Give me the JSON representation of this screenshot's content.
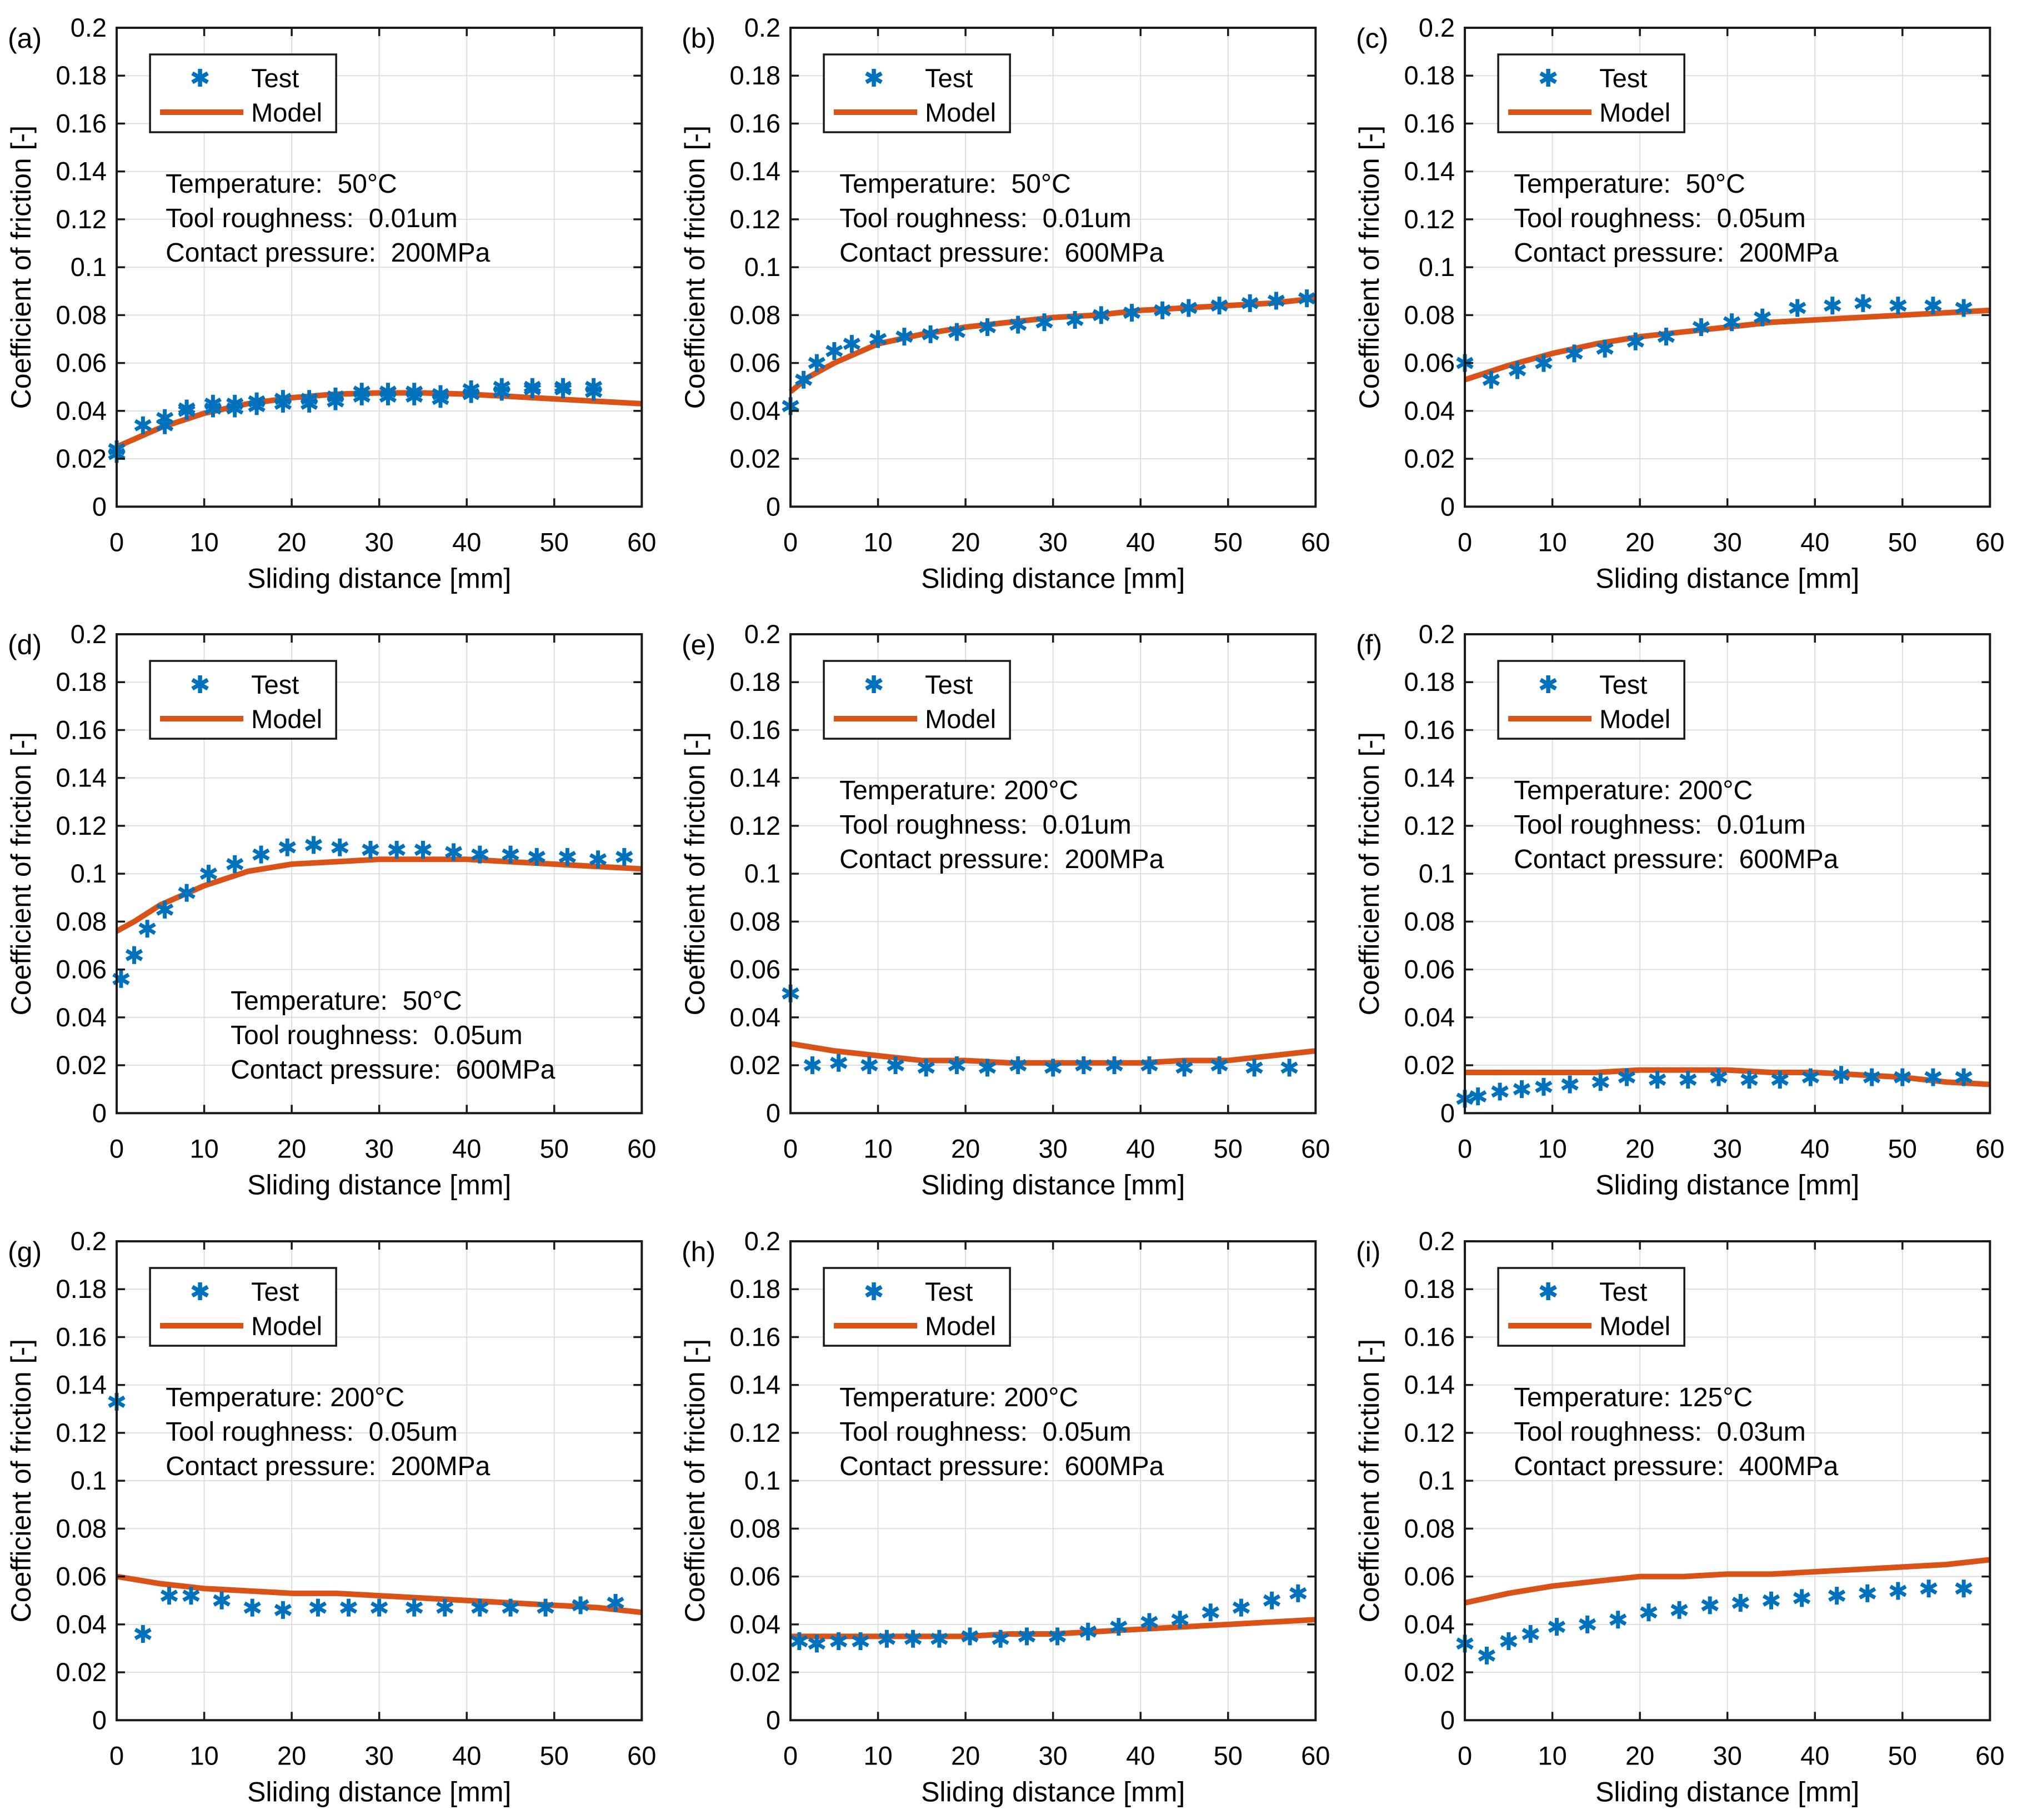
{
  "figure": {
    "xlabel": "Sliding distance [mm]",
    "ylabel": "Coefficient of friction [-]",
    "legend": {
      "test_label": "Test",
      "model_label": "Model"
    },
    "colors": {
      "test": "#0072BD",
      "model": "#D95319",
      "grid": "#DEDEDE",
      "axis": "#1a1a1a",
      "text": "#000000",
      "background": "#ffffff"
    },
    "axes": {
      "xlim": [
        0,
        60
      ],
      "ylim": [
        0,
        0.2
      ],
      "xticks": [
        0,
        10,
        20,
        30,
        40,
        50,
        60
      ],
      "xtick_labels": [
        "0",
        "10",
        "20",
        "30",
        "40",
        "50",
        "60"
      ],
      "yticks": [
        0,
        0.02,
        0.04,
        0.06,
        0.08,
        0.1,
        0.12,
        0.14,
        0.16,
        0.18,
        0.2
      ],
      "ytick_labels": [
        "0",
        "0.02",
        "0.04",
        "0.06",
        "0.08",
        "0.1",
        "0.12",
        "0.14",
        "0.16",
        "0.18",
        "0.2"
      ],
      "grid": true,
      "legend_position": "upper-left-inside"
    }
  },
  "chart_data": [
    {
      "panel": "(a)",
      "type": "scatter+line",
      "annotation": {
        "position": "upper",
        "lines": [
          "Temperature:  50°C",
          "Tool roughness:  0.01um",
          "Contact pressure:  200MPa"
        ]
      },
      "series": [
        {
          "name": "Test",
          "type": "scatter",
          "x": [
            0,
            0,
            3,
            5.5,
            5.5,
            8,
            8,
            11,
            11,
            13.5,
            13.5,
            16,
            16,
            19,
            19,
            22,
            22,
            25,
            25,
            28,
            28,
            31,
            31,
            34,
            34,
            37,
            37,
            40.5,
            40.5,
            44,
            44,
            47.5,
            47.5,
            51,
            51,
            54.5,
            54.5
          ],
          "y": [
            0.022,
            0.024,
            0.034,
            0.034,
            0.037,
            0.04,
            0.041,
            0.041,
            0.043,
            0.041,
            0.043,
            0.042,
            0.044,
            0.043,
            0.045,
            0.043,
            0.045,
            0.044,
            0.046,
            0.046,
            0.048,
            0.046,
            0.048,
            0.046,
            0.048,
            0.045,
            0.047,
            0.047,
            0.049,
            0.048,
            0.05,
            0.049,
            0.05,
            0.049,
            0.05,
            0.048,
            0.05
          ]
        },
        {
          "name": "Model",
          "type": "line",
          "x": [
            0,
            5,
            10,
            15,
            20,
            25,
            30,
            35,
            40,
            45,
            50,
            55,
            60
          ],
          "y": [
            0.025,
            0.033,
            0.039,
            0.043,
            0.0455,
            0.047,
            0.0475,
            0.0475,
            0.047,
            0.046,
            0.045,
            0.044,
            0.043
          ]
        }
      ]
    },
    {
      "panel": "(b)",
      "type": "scatter+line",
      "annotation": {
        "position": "upper",
        "lines": [
          "Temperature:  50°C",
          "Tool roughness:  0.01um",
          "Contact pressure:  600MPa"
        ]
      },
      "series": [
        {
          "name": "Test",
          "type": "scatter",
          "x": [
            0,
            1.5,
            3,
            5,
            7,
            10,
            13,
            16,
            19,
            22.5,
            26,
            29,
            32.5,
            35.5,
            39,
            42.5,
            45.5,
            49,
            52.5,
            55.5,
            59
          ],
          "y": [
            0.042,
            0.053,
            0.06,
            0.065,
            0.068,
            0.07,
            0.071,
            0.072,
            0.073,
            0.075,
            0.076,
            0.077,
            0.078,
            0.08,
            0.081,
            0.082,
            0.083,
            0.084,
            0.085,
            0.086,
            0.087
          ]
        },
        {
          "name": "Model",
          "type": "line",
          "x": [
            0,
            2,
            5,
            10,
            15,
            20,
            25,
            30,
            35,
            40,
            45,
            50,
            55,
            60
          ],
          "y": [
            0.048,
            0.054,
            0.06,
            0.068,
            0.072,
            0.075,
            0.077,
            0.079,
            0.08,
            0.082,
            0.083,
            0.084,
            0.085,
            0.087
          ]
        }
      ]
    },
    {
      "panel": "(c)",
      "type": "scatter+line",
      "annotation": {
        "position": "upper",
        "lines": [
          "Temperature:  50°C",
          "Tool roughness:  0.05um",
          "Contact pressure:  200MPa"
        ]
      },
      "series": [
        {
          "name": "Test",
          "type": "scatter",
          "x": [
            0,
            3,
            6,
            9,
            12.5,
            16,
            19.5,
            23,
            27,
            30.5,
            34,
            38,
            42,
            45.5,
            49.5,
            53.5,
            57
          ],
          "y": [
            0.06,
            0.053,
            0.057,
            0.06,
            0.064,
            0.066,
            0.069,
            0.071,
            0.075,
            0.077,
            0.079,
            0.083,
            0.084,
            0.085,
            0.084,
            0.084,
            0.083
          ]
        },
        {
          "name": "Model",
          "type": "line",
          "x": [
            0,
            5,
            10,
            15,
            20,
            25,
            30,
            35,
            40,
            45,
            50,
            55,
            60
          ],
          "y": [
            0.053,
            0.059,
            0.064,
            0.068,
            0.071,
            0.073,
            0.075,
            0.077,
            0.078,
            0.079,
            0.08,
            0.081,
            0.082
          ]
        }
      ]
    },
    {
      "panel": "(d)",
      "type": "scatter+line",
      "annotation": {
        "position": "lower",
        "lines": [
          "Temperature:  50°C",
          "Tool roughness:  0.05um",
          "Contact pressure:  600MPa"
        ]
      },
      "series": [
        {
          "name": "Test",
          "type": "scatter",
          "x": [
            0.5,
            2,
            3.5,
            5.5,
            8,
            10.5,
            13.5,
            16.5,
            19.5,
            22.5,
            25.5,
            29,
            32,
            35,
            38.5,
            41.5,
            45,
            48,
            51.5,
            55,
            58
          ],
          "y": [
            0.056,
            0.066,
            0.077,
            0.085,
            0.092,
            0.1,
            0.104,
            0.108,
            0.111,
            0.112,
            0.111,
            0.11,
            0.11,
            0.11,
            0.109,
            0.108,
            0.108,
            0.107,
            0.107,
            0.106,
            0.107
          ]
        },
        {
          "name": "Model",
          "type": "line",
          "x": [
            0,
            2,
            5,
            10,
            15,
            20,
            25,
            30,
            35,
            40,
            45,
            50,
            55,
            60
          ],
          "y": [
            0.076,
            0.08,
            0.087,
            0.095,
            0.101,
            0.104,
            0.105,
            0.106,
            0.106,
            0.106,
            0.105,
            0.104,
            0.103,
            0.102
          ]
        }
      ]
    },
    {
      "panel": "(e)",
      "type": "scatter+line",
      "annotation": {
        "position": "upper",
        "lines": [
          "Temperature: 200°C",
          "Tool roughness:  0.01um",
          "Contact pressure:  200MPa"
        ]
      },
      "series": [
        {
          "name": "Test",
          "type": "scatter",
          "x": [
            0,
            2.5,
            5.5,
            9,
            12,
            15.5,
            19,
            22.5,
            26,
            30,
            33.5,
            37,
            41,
            45,
            49,
            53,
            57
          ],
          "y": [
            0.05,
            0.02,
            0.021,
            0.02,
            0.02,
            0.019,
            0.02,
            0.019,
            0.02,
            0.019,
            0.02,
            0.02,
            0.02,
            0.019,
            0.02,
            0.019,
            0.019
          ]
        },
        {
          "name": "Model",
          "type": "line",
          "x": [
            0,
            5,
            10,
            15,
            20,
            25,
            30,
            35,
            40,
            45,
            50,
            55,
            60
          ],
          "y": [
            0.029,
            0.026,
            0.024,
            0.022,
            0.022,
            0.021,
            0.021,
            0.021,
            0.021,
            0.022,
            0.022,
            0.024,
            0.026
          ]
        }
      ]
    },
    {
      "panel": "(f)",
      "type": "scatter+line",
      "annotation": {
        "position": "upper",
        "lines": [
          "Temperature: 200°C",
          "Tool roughness:  0.01um",
          "Contact pressure:  600MPa"
        ]
      },
      "series": [
        {
          "name": "Test",
          "type": "scatter",
          "x": [
            0,
            1.5,
            4,
            6.5,
            9,
            12,
            15.5,
            18.5,
            22,
            25.5,
            29,
            32.5,
            36,
            39.5,
            43,
            46.5,
            50,
            53.5,
            57
          ],
          "y": [
            0.006,
            0.007,
            0.009,
            0.01,
            0.011,
            0.012,
            0.013,
            0.015,
            0.014,
            0.014,
            0.015,
            0.014,
            0.014,
            0.015,
            0.016,
            0.015,
            0.015,
            0.015,
            0.015
          ]
        },
        {
          "name": "Model",
          "type": "line",
          "x": [
            0,
            5,
            10,
            15,
            20,
            25,
            30,
            35,
            40,
            45,
            50,
            55,
            60
          ],
          "y": [
            0.017,
            0.017,
            0.017,
            0.017,
            0.018,
            0.018,
            0.018,
            0.017,
            0.017,
            0.016,
            0.015,
            0.013,
            0.012
          ]
        }
      ]
    },
    {
      "panel": "(g)",
      "type": "scatter+line",
      "annotation": {
        "position": "upper",
        "lines": [
          "Temperature: 200°C",
          "Tool roughness:  0.05um",
          "Contact pressure:  200MPa"
        ]
      },
      "series": [
        {
          "name": "Test",
          "type": "scatter",
          "x": [
            0,
            3,
            6,
            8.5,
            12,
            15.5,
            19,
            23,
            26.5,
            30,
            34,
            37.5,
            41.5,
            45,
            49,
            53,
            57
          ],
          "y": [
            0.133,
            0.036,
            0.052,
            0.052,
            0.05,
            0.047,
            0.046,
            0.047,
            0.047,
            0.047,
            0.047,
            0.047,
            0.047,
            0.047,
            0.047,
            0.048,
            0.049
          ]
        },
        {
          "name": "Model",
          "type": "line",
          "x": [
            0,
            5,
            10,
            15,
            20,
            25,
            30,
            35,
            40,
            45,
            50,
            55,
            60
          ],
          "y": [
            0.06,
            0.057,
            0.055,
            0.054,
            0.053,
            0.053,
            0.052,
            0.051,
            0.05,
            0.049,
            0.048,
            0.047,
            0.045
          ]
        }
      ]
    },
    {
      "panel": "(h)",
      "type": "scatter+line",
      "annotation": {
        "position": "upper",
        "lines": [
          "Temperature: 200°C",
          "Tool roughness:  0.05um",
          "Contact pressure:  600MPa"
        ]
      },
      "series": [
        {
          "name": "Test",
          "type": "scatter",
          "x": [
            1,
            3,
            5.5,
            8,
            11,
            14,
            17,
            20.5,
            24,
            27,
            30.5,
            34,
            37.5,
            41,
            44.5,
            48,
            51.5,
            55,
            58
          ],
          "y": [
            0.033,
            0.032,
            0.033,
            0.033,
            0.034,
            0.034,
            0.034,
            0.035,
            0.034,
            0.035,
            0.035,
            0.037,
            0.039,
            0.041,
            0.042,
            0.045,
            0.047,
            0.05,
            0.053
          ]
        },
        {
          "name": "Model",
          "type": "line",
          "x": [
            0,
            5,
            10,
            15,
            20,
            25,
            30,
            35,
            40,
            45,
            50,
            55,
            60
          ],
          "y": [
            0.035,
            0.035,
            0.035,
            0.035,
            0.035,
            0.036,
            0.036,
            0.037,
            0.038,
            0.039,
            0.04,
            0.041,
            0.042
          ]
        }
      ]
    },
    {
      "panel": "(i)",
      "type": "scatter+line",
      "annotation": {
        "position": "upper",
        "lines": [
          "Temperature: 125°C",
          "Tool roughness:  0.03um",
          "Contact pressure:  400MPa"
        ]
      },
      "series": [
        {
          "name": "Test",
          "type": "scatter",
          "x": [
            0,
            2.5,
            5,
            7.5,
            10.5,
            14,
            17.5,
            21,
            24.5,
            28,
            31.5,
            35,
            38.5,
            42.5,
            46,
            49.5,
            53,
            57
          ],
          "y": [
            0.032,
            0.027,
            0.033,
            0.036,
            0.039,
            0.04,
            0.042,
            0.045,
            0.046,
            0.048,
            0.049,
            0.05,
            0.051,
            0.052,
            0.053,
            0.054,
            0.055,
            0.055
          ]
        },
        {
          "name": "Model",
          "type": "line",
          "x": [
            0,
            5,
            10,
            15,
            20,
            25,
            30,
            35,
            40,
            45,
            50,
            55,
            60
          ],
          "y": [
            0.049,
            0.053,
            0.056,
            0.058,
            0.06,
            0.06,
            0.061,
            0.061,
            0.062,
            0.063,
            0.064,
            0.065,
            0.067
          ]
        }
      ]
    }
  ]
}
